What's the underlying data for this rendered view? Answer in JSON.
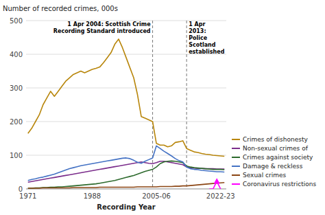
{
  "chart_data": {
    "type": "line",
    "y_label": "Number of recorded crimes, 000s",
    "x_label": "Recording Year",
    "categories": [
      "1971",
      null,
      null,
      null,
      null,
      null,
      null,
      null,
      null,
      null,
      null,
      null,
      null,
      null,
      null,
      null,
      null,
      "1988",
      null,
      null,
      null,
      null,
      null,
      null,
      null,
      null,
      null,
      null,
      null,
      null,
      null,
      null,
      null,
      null,
      "2005-06",
      null,
      null,
      null,
      null,
      null,
      null,
      null,
      null,
      null,
      null,
      null,
      null,
      null,
      null,
      null,
      null,
      "2022-23",
      null
    ],
    "ylim": [
      0,
      500
    ],
    "yticks": [
      0,
      100,
      200,
      300,
      400,
      500
    ],
    "grid": true,
    "legend": "lower right",
    "series": [
      {
        "name": "Crimes of dishonesty",
        "color": "#b8860b",
        "values": [
          165,
          180,
          200,
          220,
          250,
          270,
          290,
          275,
          290,
          305,
          320,
          330,
          340,
          345,
          350,
          345,
          350,
          355,
          358,
          362,
          375,
          390,
          405,
          430,
          445,
          420,
          390,
          360,
          330,
          280,
          215,
          210,
          205,
          200,
          135,
          130,
          130,
          125,
          128,
          138,
          140,
          143,
          120,
          115,
          110,
          108,
          105,
          103,
          102,
          100,
          99,
          98,
          97
        ]
      },
      {
        "name": "Non-sexual crimes of",
        "color": "#7b2d8b",
        "values": [
          20,
          22,
          24,
          26,
          28,
          30,
          32,
          34,
          36,
          38,
          40,
          42,
          44,
          46,
          48,
          50,
          52,
          54,
          56,
          58,
          60,
          62,
          64,
          66,
          68,
          70,
          72,
          74,
          76,
          78,
          80,
          78,
          76,
          75,
          78,
          82,
          82,
          80,
          78,
          76,
          74,
          72,
          65,
          63,
          62,
          61,
          61,
          60,
          60,
          60,
          59,
          59,
          59
        ]
      },
      {
        "name": "Crimes against society",
        "color": "#2d6a2d",
        "values": [
          2,
          2,
          3,
          3,
          4,
          4,
          5,
          5,
          6,
          6,
          7,
          8,
          9,
          10,
          11,
          12,
          13,
          14,
          15,
          17,
          19,
          21,
          23,
          25,
          28,
          31,
          34,
          37,
          40,
          44,
          48,
          52,
          55,
          58,
          65,
          75,
          80,
          82,
          83,
          82,
          80,
          78,
          68,
          65,
          63,
          62,
          61,
          60,
          59,
          58,
          58,
          58,
          57
        ]
      },
      {
        "name": "Damage & reckless",
        "color": "#4472c4",
        "values": [
          25,
          28,
          30,
          33,
          35,
          38,
          41,
          44,
          48,
          52,
          56,
          60,
          63,
          66,
          69,
          71,
          73,
          75,
          77,
          79,
          81,
          83,
          85,
          87,
          89,
          91,
          92,
          90,
          85,
          79,
          76,
          82,
          87,
          92,
          128,
          120,
          112,
          105,
          98,
          90,
          84,
          80,
          65,
          60,
          58,
          57,
          55,
          54,
          53,
          52,
          51,
          51,
          50
        ]
      },
      {
        "name": "Sexual crimes",
        "color": "#8b4513",
        "values": [
          2,
          2,
          2,
          2,
          3,
          3,
          3,
          3,
          3,
          3,
          3,
          3,
          4,
          4,
          4,
          4,
          4,
          4,
          4,
          5,
          5,
          5,
          5,
          5,
          5,
          5,
          5,
          5,
          5,
          6,
          6,
          6,
          6,
          6,
          6,
          7,
          7,
          7,
          7,
          8,
          8,
          9,
          9,
          10,
          11,
          12,
          13,
          14,
          15,
          16,
          17,
          18,
          19
        ]
      },
      {
        "name": "Coronavirus restrictions",
        "color": "#ff00ff",
        "marker": "triangle",
        "values": [
          null,
          null,
          null,
          null,
          null,
          null,
          null,
          null,
          null,
          null,
          null,
          null,
          null,
          null,
          null,
          null,
          null,
          null,
          null,
          null,
          null,
          null,
          null,
          null,
          null,
          null,
          null,
          null,
          null,
          null,
          null,
          null,
          null,
          null,
          null,
          null,
          null,
          null,
          null,
          null,
          null,
          null,
          null,
          null,
          null,
          null,
          null,
          null,
          0,
          0,
          22,
          0,
          null
        ]
      }
    ],
    "annotations": [
      {
        "x": 33,
        "text": "1 Apr 2004: Scottish Crime\nRecording Standard introduced",
        "side": "left"
      },
      {
        "x": 42,
        "text": "1 Apr\n2013:\nPolice\nScotland\nestablished",
        "side": "right"
      }
    ]
  }
}
